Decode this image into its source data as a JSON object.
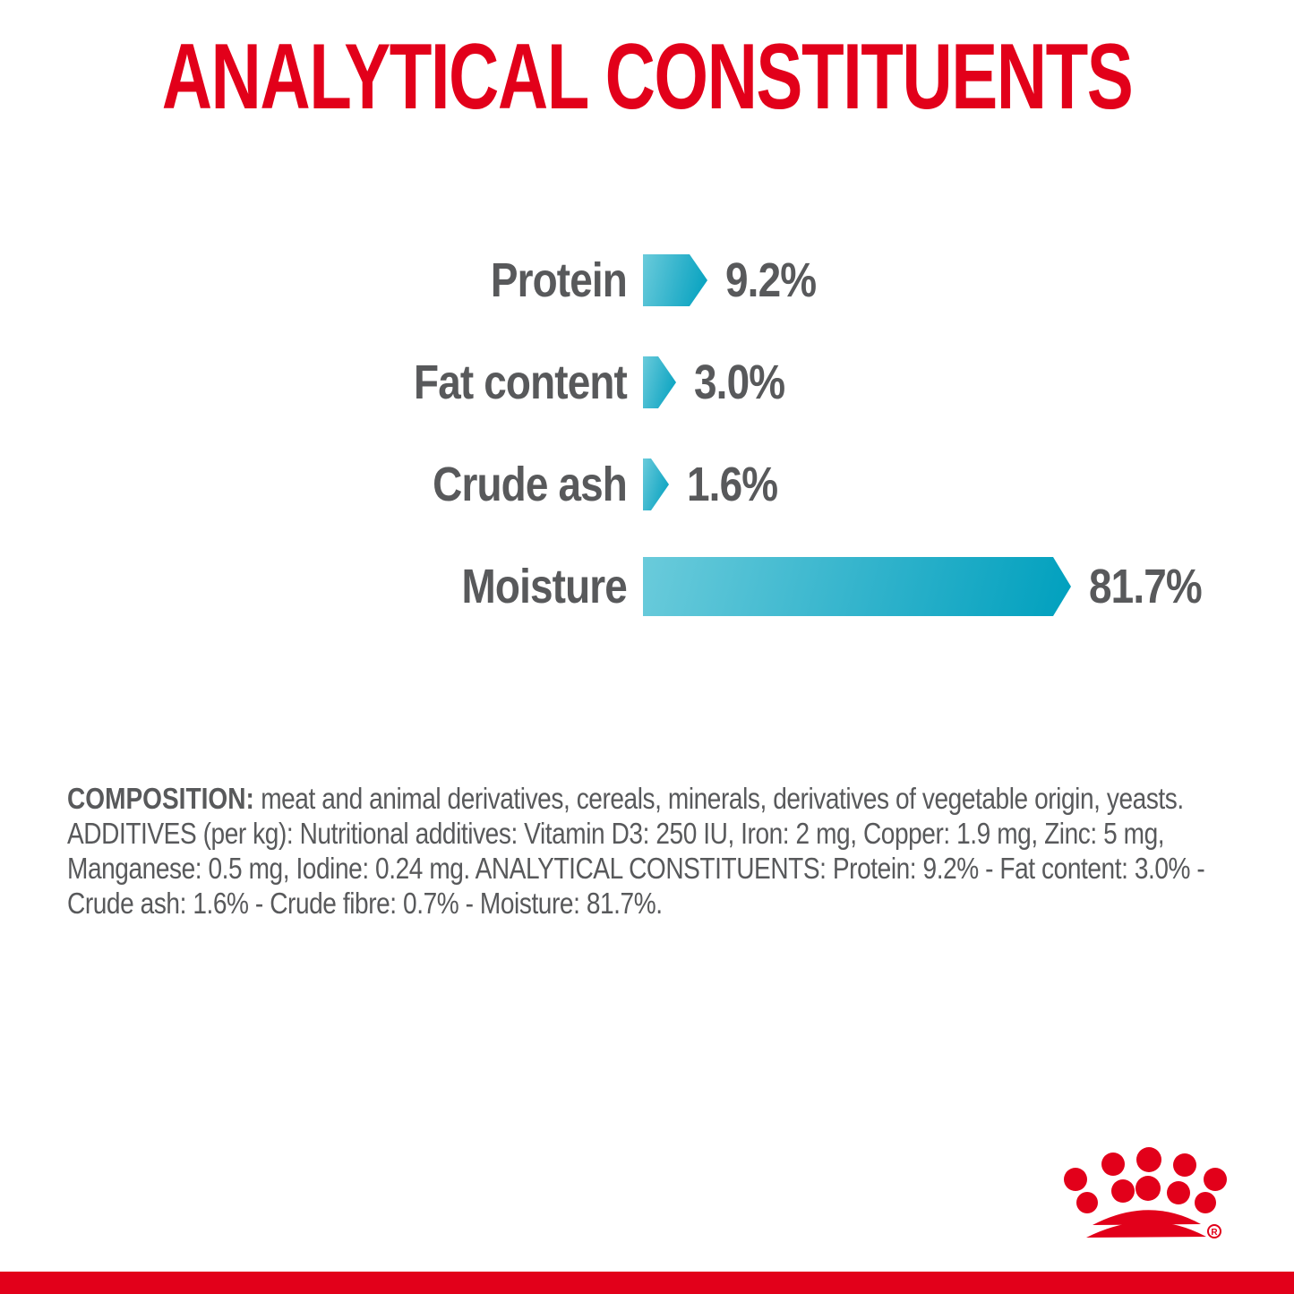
{
  "title": {
    "text": "ANALYTICAL CONSTITUENTS",
    "color": "#E2001A"
  },
  "chart_data": {
    "type": "bar",
    "orientation": "horizontal",
    "title": "ANALYTICAL CONSTITUENTS",
    "categories": [
      "Protein",
      "Fat content",
      "Crude ash",
      "Moisture"
    ],
    "values": [
      9.2,
      3.0,
      1.6,
      81.7
    ],
    "value_labels": [
      "9.2%",
      "3.0%",
      "1.6%",
      "81.7%"
    ],
    "xlim": [
      0,
      85
    ],
    "grid": false,
    "legend": false,
    "bar_gradient_start": "#6ACBDB",
    "bar_gradient_end": "#00A0BE",
    "label_color": "#58595B"
  },
  "composition": {
    "heading": "COMPOSITION:",
    "line1_rest": " meat and animal derivatives, cereals, minerals, derivatives of vegetable origin, yeasts.",
    "line2": "ADDITIVES (per kg): Nutritional additives: Vitamin D3: 250 IU, Iron: 2 mg, Copper: 1.9 mg, Zinc: 5 mg,",
    "line3": "Manganese: 0.5 mg, Iodine: 0.24 mg. ANALYTICAL CONSTITUENTS: Protein: 9.2% - Fat content: 3.0% -",
    "line4": "Crude ash: 1.6% - Crude fibre: 0.7% - Moisture: 81.7%.",
    "text_color": "#58595B"
  },
  "footer": {
    "logo_name": "royal-canin-crown",
    "registered_mark": "R",
    "bar_color": "#E2001A",
    "logo_color": "#E2001A"
  }
}
